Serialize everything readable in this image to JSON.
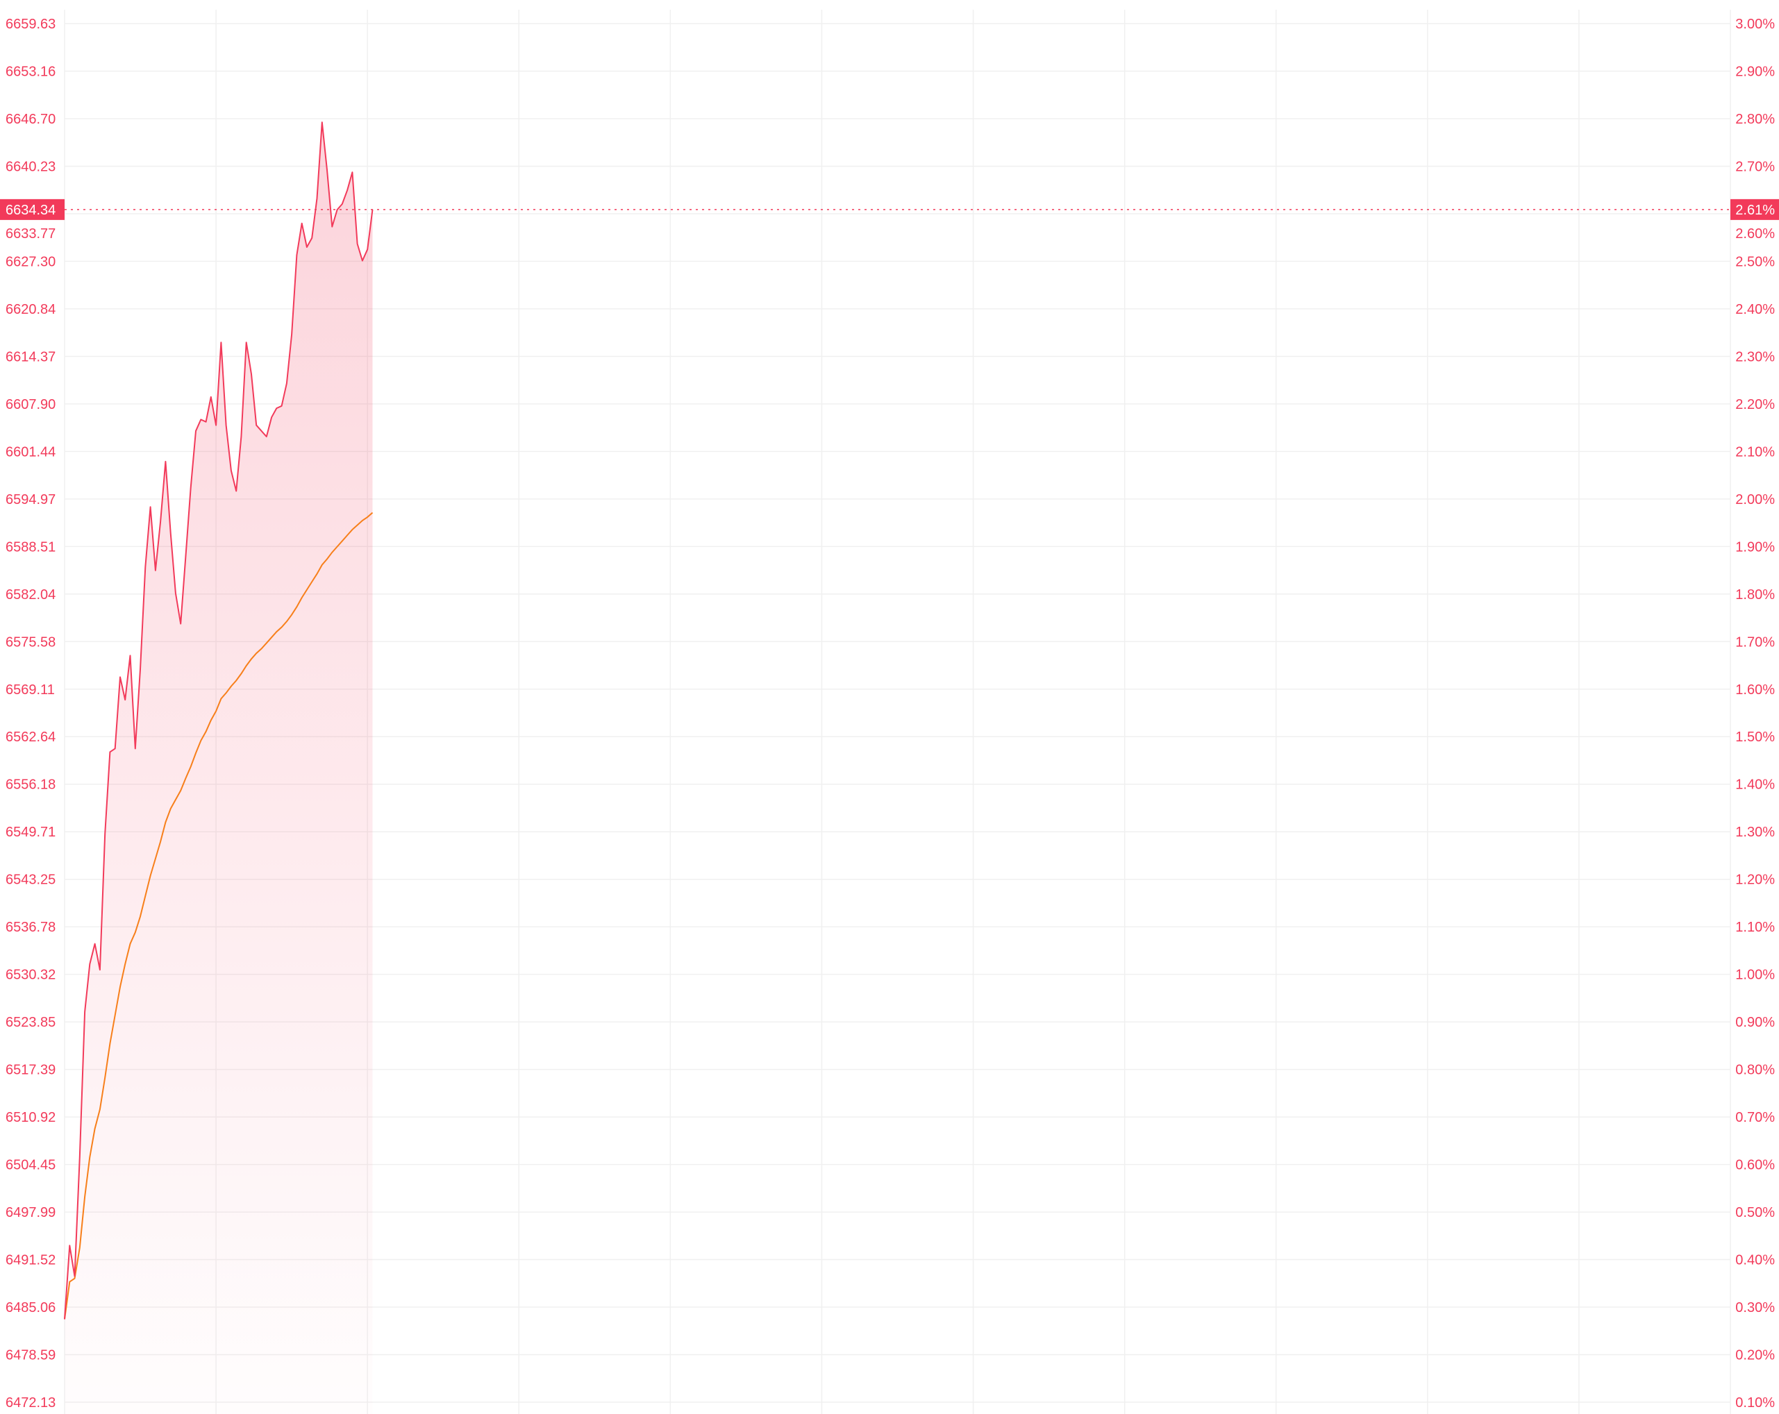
{
  "chart_data": {
    "type": "line",
    "title": "",
    "xlabel": "",
    "ylabel": "",
    "ylim": [
      6472.13,
      6659.63
    ],
    "xlim": [
      0,
      330
    ],
    "grid": true,
    "legend": "none",
    "colors": {
      "price": "#f23a5a",
      "average": "#f77f1a",
      "fill": "#f23a5a",
      "grid": "#f0f0f0",
      "tick": "#f23a5a",
      "badge": "#f23a5a"
    },
    "left_ticks": [
      "6659.63",
      "6653.16",
      "6646.70",
      "6640.23",
      "6633.77",
      "6627.30",
      "6620.84",
      "6614.37",
      "6607.90",
      "6601.44",
      "6594.97",
      "6588.51",
      "6582.04",
      "6575.58",
      "6569.11",
      "6562.64",
      "6556.18",
      "6549.71",
      "6543.25",
      "6536.78",
      "6530.32",
      "6523.85",
      "6517.39",
      "6510.92",
      "6504.45",
      "6497.99",
      "6491.52",
      "6485.06",
      "6478.59",
      "6472.13"
    ],
    "right_ticks": [
      "3.00%",
      "2.90%",
      "2.80%",
      "2.70%",
      "2.60%",
      "2.50%",
      "2.40%",
      "2.30%",
      "2.20%",
      "2.10%",
      "2.00%",
      "1.90%",
      "1.80%",
      "1.70%",
      "1.60%",
      "1.50%",
      "1.40%",
      "1.30%",
      "1.20%",
      "1.10%",
      "1.00%",
      "0.90%",
      "0.80%",
      "0.70%",
      "0.60%",
      "0.50%",
      "0.40%",
      "0.30%",
      "0.20%",
      "0.10%"
    ],
    "current": {
      "price": 6634.34,
      "price_label": "6634.34",
      "change_label": "2.61%"
    },
    "series": [
      {
        "values": [
          6483.41,
          6493.44,
          6489.27,
          6505.47,
          6525.23,
          6531.71,
          6534.48,
          6530.94,
          6549.45,
          6560.56,
          6561.03,
          6570.75,
          6567.66,
          6573.68,
          6561.03,
          6571.83,
          6585.72,
          6593.89,
          6585.25,
          6591.89,
          6600.07,
          6590.34,
          6582.17,
          6578.0,
          6587.26,
          6596.52,
          6604.23,
          6605.78,
          6605.47,
          6608.86,
          6605.0,
          6616.27,
          6605.0,
          6598.83,
          6596.05,
          6603.46,
          6616.27,
          6611.95,
          6605.0,
          6604.23,
          6603.46,
          6606.08,
          6607.32,
          6607.63,
          6610.71,
          6617.35,
          6628.15,
          6632.47,
          6629.23,
          6630.47,
          6635.87,
          6646.21,
          6639.72,
          6632.01,
          6634.32,
          6635.09,
          6636.95,
          6639.42,
          6629.69,
          6627.38,
          6628.92,
          6634.34
        ]
      },
      {
        "values": [
          6483.41,
          6488.5,
          6488.96,
          6493.13,
          6500.07,
          6505.47,
          6509.33,
          6511.96,
          6516.28,
          6520.91,
          6524.76,
          6528.62,
          6531.71,
          6534.48,
          6536.03,
          6538.19,
          6540.97,
          6543.74,
          6546.06,
          6548.37,
          6551.0,
          6552.85,
          6554.08,
          6555.32,
          6557.01,
          6558.56,
          6560.41,
          6562.11,
          6563.34,
          6564.88,
          6566.12,
          6567.82,
          6568.59,
          6569.51,
          6570.28,
          6571.21,
          6572.29,
          6573.22,
          6573.99,
          6574.61,
          6575.38,
          6576.15,
          6576.92,
          6577.54,
          6578.31,
          6579.23,
          6580.31,
          6581.55,
          6582.63,
          6583.71,
          6584.79,
          6586.02,
          6586.8,
          6587.72,
          6588.49,
          6589.26,
          6590.04,
          6590.81,
          6591.42,
          6592.04,
          6592.51,
          6593.12
        ]
      }
    ]
  }
}
